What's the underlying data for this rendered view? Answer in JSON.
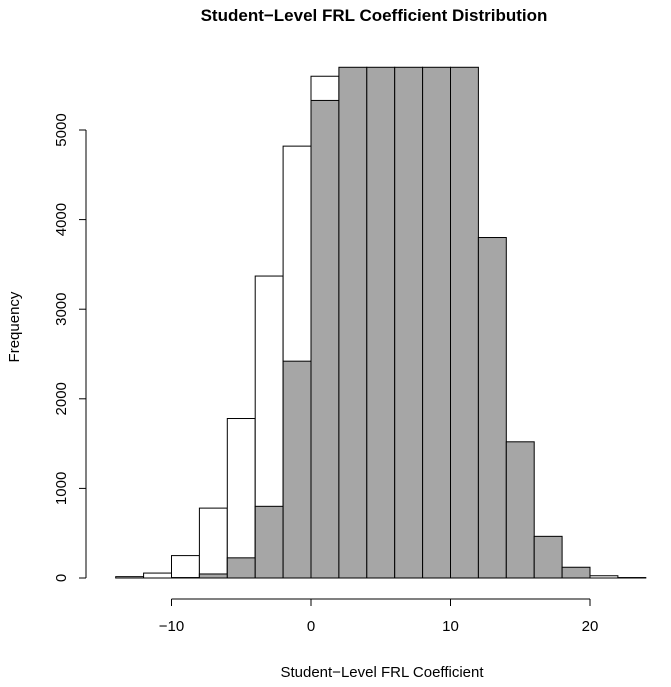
{
  "chart_data": {
    "type": "bar",
    "title": "Student−Level FRL Coefficient Distribution",
    "xlabel": "Student−Level FRL Coefficient",
    "ylabel": "Frequency",
    "xlim": [
      -14,
      24
    ],
    "ylim": [
      0,
      5600
    ],
    "x_ticks": [
      -10,
      0,
      10,
      20
    ],
    "x_tick_labels": [
      "−10",
      "0",
      "10",
      "20"
    ],
    "y_ticks": [
      0,
      1000,
      2000,
      3000,
      4000,
      5000
    ],
    "y_tick_labels": [
      "0",
      "1000",
      "2000",
      "3000",
      "4000",
      "5000"
    ],
    "bin_width": 2,
    "bin_left_edges": [
      -14,
      -12,
      -10,
      -8,
      -6,
      -4,
      -2,
      0,
      2,
      4,
      6,
      8,
      10,
      12,
      14,
      16,
      18,
      20,
      22
    ],
    "series": [
      {
        "fill": "#ffffff",
        "values": [
          15,
          55,
          250,
          780,
          1780,
          3370,
          4820,
          5600,
          4950,
          3460,
          1880,
          790,
          270,
          75,
          15,
          10,
          0,
          25,
          5
        ]
      },
      {
        "fill": "#a6a6a6",
        "values": [
          0,
          0,
          5,
          45,
          225,
          800,
          2420,
          5330,
          5700,
          5700,
          5700,
          5700,
          5700,
          3800,
          1520,
          465,
          120,
          0,
          0
        ]
      }
    ]
  }
}
